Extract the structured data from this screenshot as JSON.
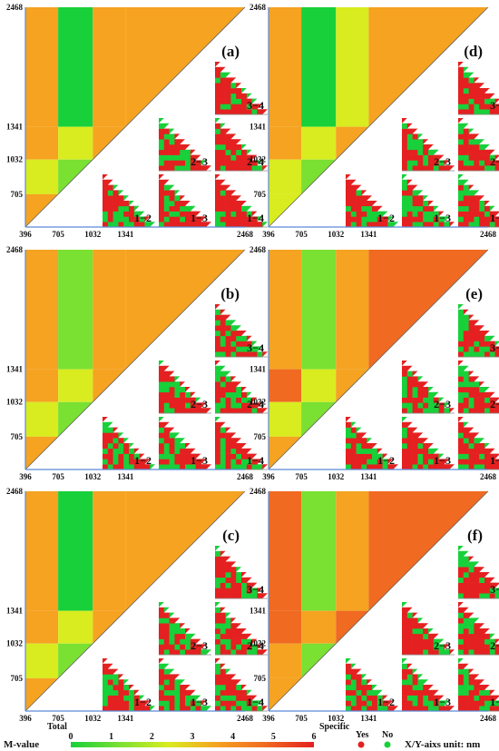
{
  "colors": {
    "scale": [
      "#18d03a",
      "#7ae032",
      "#d8ec20",
      "#f5a321",
      "#f06a21",
      "#e42020"
    ],
    "yes": "#e42020",
    "no": "#18d03a",
    "axis": "#5a8bd6",
    "frame": "#666666"
  },
  "chart_data": [
    {
      "type": "heatmap",
      "panel_letter": "(a)",
      "x_ticks": [
        "396",
        "705",
        "1032",
        "1341",
        "2468"
      ],
      "y_ticks": [
        "2468",
        "1341",
        "1032",
        "705"
      ],
      "x_range": [
        396,
        2468
      ],
      "y_range": [
        396,
        2468
      ],
      "pairs": [
        "3−4",
        "2−3",
        "2−4",
        "1−2",
        "1−3",
        "1−4"
      ],
      "total_blocks": [
        3.6,
        3.7,
        2.6,
        3.2,
        0.5,
        2.4,
        0.8,
        3.4
      ]
    },
    {
      "type": "heatmap",
      "panel_letter": "(d)",
      "x_ticks": [
        "396",
        "705",
        "1032",
        "1341",
        "2468"
      ],
      "y_ticks": [
        "2468",
        "1341",
        "1032",
        "705"
      ],
      "x_range": [
        396,
        2468
      ],
      "y_range": [
        396,
        2468
      ],
      "pairs": [
        "3−4",
        "2−3",
        "2−4",
        "1−2",
        "1−3",
        "1−4"
      ],
      "total_blocks": [
        3.4,
        3.6,
        2.8,
        2.5,
        0.6,
        2.2,
        0.9,
        2.9
      ]
    },
    {
      "type": "heatmap",
      "panel_letter": "(b)",
      "x_ticks": [
        "396",
        "705",
        "1032",
        "1341",
        "2468"
      ],
      "y_ticks": [
        "2468",
        "1341",
        "1032",
        "705"
      ],
      "x_range": [
        396,
        2468
      ],
      "y_range": [
        396,
        2468
      ],
      "pairs": [
        "3−4",
        "2−3",
        "2−4",
        "1−2",
        "1−3",
        "1−4"
      ],
      "total_blocks": [
        3.5,
        3.4,
        2.4,
        3.1,
        0.7,
        2.6,
        1.0,
        3.2
      ]
    },
    {
      "type": "heatmap",
      "panel_letter": "(e)",
      "x_ticks": [
        "396",
        "705",
        "1032",
        "1341",
        "2468"
      ],
      "y_ticks": [
        "2468",
        "1341",
        "1032",
        "705"
      ],
      "x_range": [
        396,
        2468
      ],
      "y_range": [
        396,
        2468
      ],
      "pairs": [
        "3−4",
        "2−3",
        "2−4",
        "1−2",
        "1−3",
        "1−4"
      ],
      "total_blocks": [
        3.7,
        4.2,
        2.7,
        3.3,
        0.8,
        2.8,
        1.1,
        3.1
      ]
    },
    {
      "type": "heatmap",
      "panel_letter": "(c)",
      "x_ticks": [
        "396",
        "705",
        "1032",
        "1341",
        "2468"
      ],
      "y_ticks": [
        "2468",
        "1341",
        "1032",
        "705"
      ],
      "x_range": [
        396,
        2468
      ],
      "y_range": [
        396,
        2468
      ],
      "pairs": [
        "3−4",
        "2−3",
        "2−4",
        "1−2",
        "1−3",
        "1−4"
      ],
      "total_blocks": [
        3.5,
        3.6,
        2.5,
        3.3,
        0.6,
        2.5,
        0.9,
        3.3
      ]
    },
    {
      "type": "heatmap",
      "panel_letter": "(f)",
      "x_ticks": [
        "396",
        "705",
        "1032",
        "1341",
        "2468"
      ],
      "y_ticks": [
        "2468",
        "1341",
        "1032",
        "705"
      ],
      "x_range": [
        396,
        2468
      ],
      "y_range": [
        396,
        2468
      ],
      "pairs": [
        "3−4",
        "2−3",
        "2−4",
        "1−2",
        "1−3",
        "1−4"
      ],
      "total_blocks": [
        4.6,
        4.8,
        3.0,
        3.4,
        1.2,
        3.0,
        1.4,
        3.3
      ]
    }
  ],
  "legend": {
    "mvalue_label": "M-value",
    "total_label": "Total",
    "scale_ticks": [
      "0",
      "1",
      "2",
      "3",
      "4",
      "5",
      "6"
    ],
    "scale_range": [
      0,
      6
    ],
    "specific_label": "Specific",
    "yes_label": "Yes",
    "no_label": "No",
    "axis_unit_label": "X/Y-aixs  unit: nm"
  }
}
